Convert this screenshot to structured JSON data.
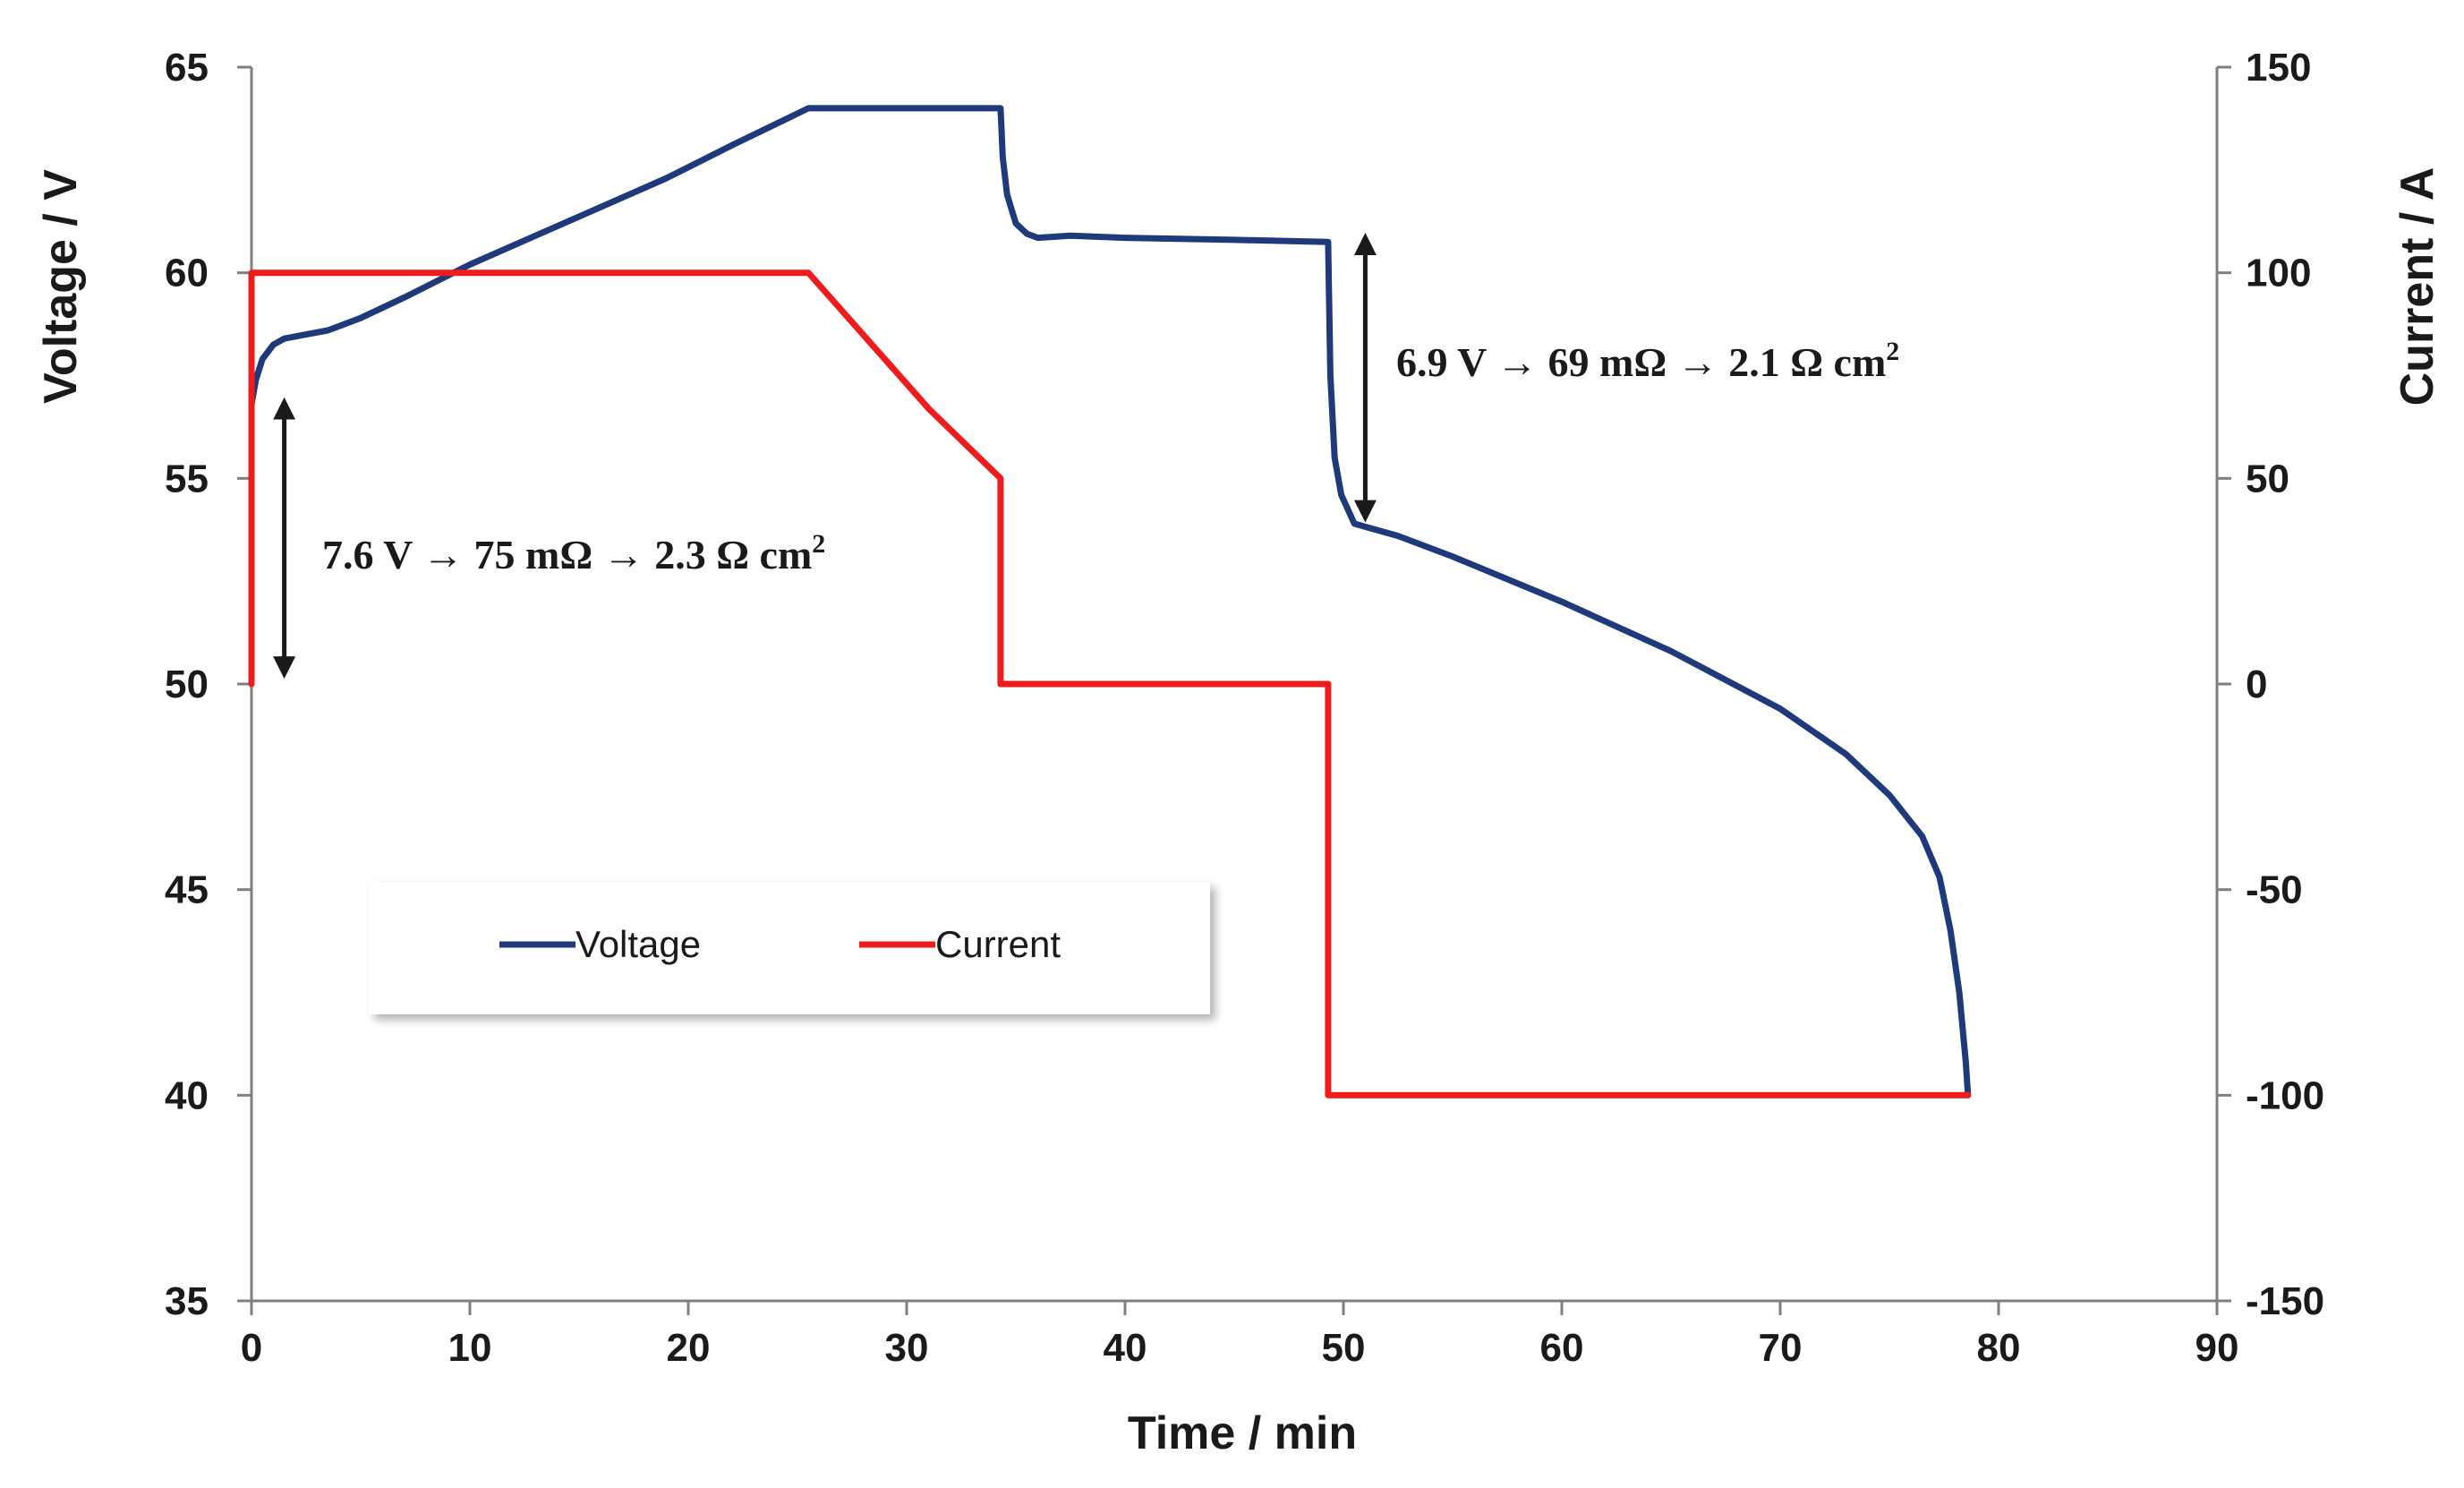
{
  "chart_data": {
    "type": "line",
    "xlabel": "Time / min",
    "ylabel": "Voltage / V",
    "y2label": "Current / A",
    "xlim": [
      0,
      90
    ],
    "ylim": [
      35,
      65
    ],
    "y2lim": [
      -150,
      150
    ],
    "x_ticks": [
      "0",
      "10",
      "20",
      "30",
      "40",
      "50",
      "60",
      "70",
      "80",
      "90"
    ],
    "y_ticks": [
      "35",
      "40",
      "45",
      "50",
      "55",
      "60",
      "65"
    ],
    "y2_ticks": [
      "-150",
      "-100",
      "-50",
      "0",
      "50",
      "100",
      "150"
    ],
    "grid": false,
    "legend_position": "middle-left",
    "series": [
      {
        "name": "Voltage",
        "axis": "left",
        "color": "#1f3a7a",
        "points": [
          [
            0,
            56.8
          ],
          [
            0.2,
            57.4
          ],
          [
            0.5,
            57.9
          ],
          [
            1,
            58.25
          ],
          [
            1.5,
            58.4
          ],
          [
            2.5,
            58.5
          ],
          [
            3.5,
            58.6
          ],
          [
            5,
            58.9
          ],
          [
            7,
            59.4
          ],
          [
            10,
            60.2
          ],
          [
            13,
            60.9
          ],
          [
            16,
            61.6
          ],
          [
            19,
            62.3
          ],
          [
            22,
            63.1
          ],
          [
            25.5,
            64.0
          ],
          [
            30,
            64.0
          ],
          [
            34.3,
            64.0
          ],
          [
            34.4,
            62.8
          ],
          [
            34.6,
            61.9
          ],
          [
            35.0,
            61.2
          ],
          [
            35.5,
            60.95
          ],
          [
            36,
            60.85
          ],
          [
            37.5,
            60.9
          ],
          [
            40,
            60.85
          ],
          [
            45,
            60.8
          ],
          [
            49.3,
            60.75
          ],
          [
            49.4,
            57.5
          ],
          [
            49.6,
            55.5
          ],
          [
            49.9,
            54.6
          ],
          [
            50.5,
            53.9
          ],
          [
            51.5,
            53.75
          ],
          [
            52.5,
            53.6
          ],
          [
            55,
            53.1
          ],
          [
            60,
            52.0
          ],
          [
            65,
            50.8
          ],
          [
            70,
            49.4
          ],
          [
            73,
            48.3
          ],
          [
            75,
            47.3
          ],
          [
            76.5,
            46.3
          ],
          [
            77.3,
            45.3
          ],
          [
            77.8,
            44.0
          ],
          [
            78.2,
            42.5
          ],
          [
            78.5,
            40.8
          ],
          [
            78.6,
            40.0
          ]
        ]
      },
      {
        "name": "Current",
        "axis": "right",
        "color": "#ee1c1c",
        "points": [
          [
            0,
            0
          ],
          [
            0,
            100
          ],
          [
            25.5,
            100
          ],
          [
            28,
            85
          ],
          [
            31,
            67
          ],
          [
            34.3,
            50
          ],
          [
            34.3,
            0
          ],
          [
            49.3,
            0
          ],
          [
            49.3,
            -100
          ],
          [
            78.6,
            -100
          ]
        ]
      }
    ],
    "annotations": [
      {
        "text": "7.6 V → 75 mΩ → 2.3 Ω cm",
        "sup": "2",
        "x": 1.5,
        "y_from": 50.4,
        "y_to": 56.7
      },
      {
        "text": "6.9 V → 69 mΩ → 2.1 Ω cm",
        "sup": "2",
        "x": 51,
        "y_from": 54.2,
        "y_to": 60.7
      }
    ]
  }
}
